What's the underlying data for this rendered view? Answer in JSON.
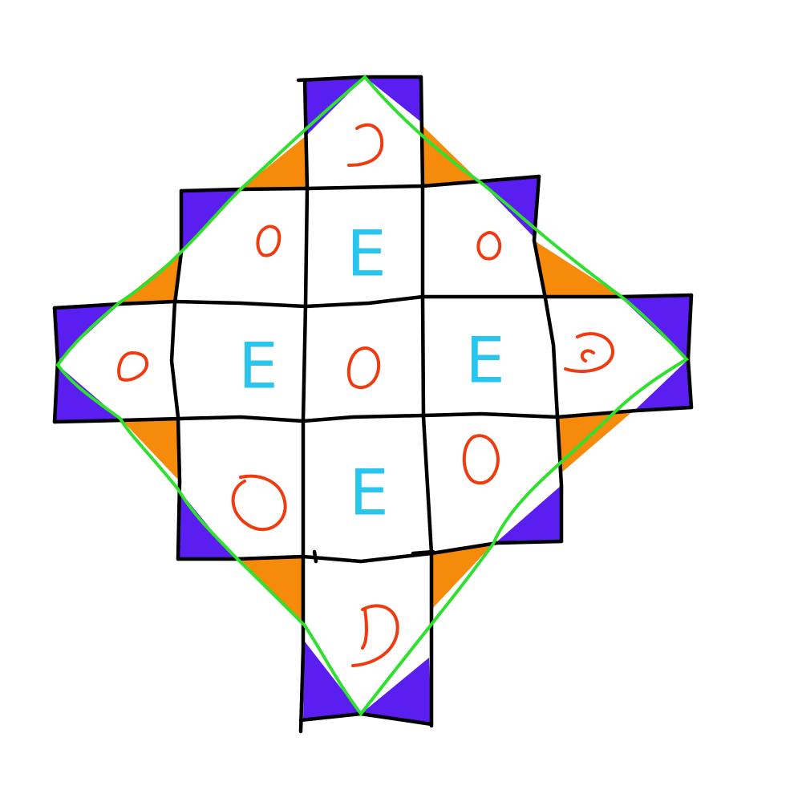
{
  "colors": {
    "background": "#ffffff",
    "grid_line": "#000000",
    "corner_blue": "#5a1ef0",
    "corner_orange": "#f58a0b",
    "diamond_outline": "#2fe02f",
    "circle_mark": "#f03a10",
    "letter_mark": "#28c6ee"
  },
  "grid": {
    "rows": [
      [
        "blank",
        "blank",
        "o",
        "blank",
        "blank"
      ],
      [
        "blank",
        "o",
        "E",
        "o",
        "blank"
      ],
      [
        "o",
        "E",
        "o",
        "E",
        "o"
      ],
      [
        "blank",
        "o",
        "E",
        "o",
        "blank"
      ],
      [
        "blank",
        "blank",
        "o",
        "blank",
        "blank"
      ]
    ],
    "cell_shape": "plus-shaped board of 13 squares",
    "letter": "E"
  },
  "shapes": {
    "outline": "diamond",
    "corner_fills": [
      "blue",
      "orange"
    ]
  }
}
